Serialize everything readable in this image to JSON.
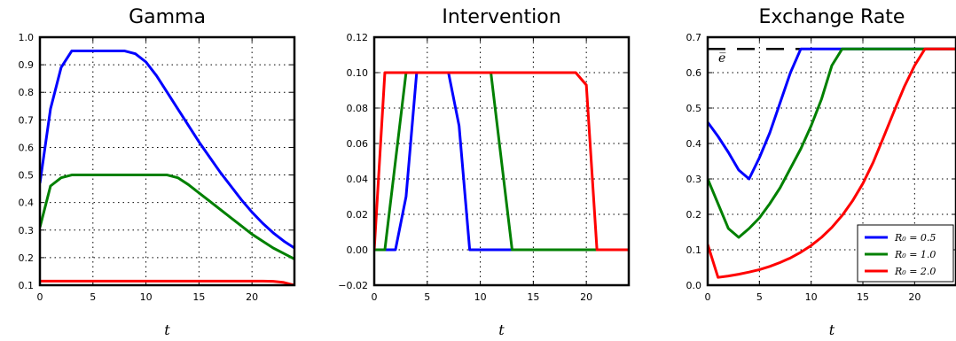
{
  "chart_data": [
    {
      "type": "line",
      "title": "Gamma",
      "xlabel": "t",
      "ylabel": "",
      "xlim": [
        0,
        24
      ],
      "ylim": [
        0.1,
        1.0
      ],
      "xticks": [
        0,
        5,
        10,
        15,
        20
      ],
      "yticks": [
        0.1,
        0.2,
        0.3,
        0.4,
        0.5,
        0.6,
        0.7,
        0.8,
        0.9,
        1.0
      ],
      "ytick_labels": [
        "0.1",
        "0.2",
        "0.3",
        "0.4",
        "0.5",
        "0.6",
        "0.7",
        "0.8",
        "0.9",
        "1.0"
      ],
      "grid": true,
      "series": [
        {
          "color": "#0000ff",
          "x": [
            0,
            1,
            2,
            3,
            4,
            5,
            6,
            7,
            8,
            9,
            10,
            11,
            12,
            13,
            14,
            15,
            16,
            17,
            18,
            19,
            20,
            21,
            22,
            23,
            24
          ],
          "y": [
            0.47,
            0.74,
            0.89,
            0.95,
            0.95,
            0.95,
            0.95,
            0.95,
            0.95,
            0.94,
            0.91,
            0.86,
            0.8,
            0.74,
            0.68,
            0.62,
            0.565,
            0.51,
            0.46,
            0.41,
            0.365,
            0.325,
            0.29,
            0.26,
            0.235
          ]
        },
        {
          "color": "#008000",
          "x": [
            0,
            1,
            2,
            3,
            4,
            5,
            6,
            7,
            8,
            9,
            10,
            11,
            12,
            13,
            14,
            15,
            16,
            17,
            18,
            19,
            20,
            21,
            22,
            23,
            24
          ],
          "y": [
            0.31,
            0.46,
            0.49,
            0.5,
            0.5,
            0.5,
            0.5,
            0.5,
            0.5,
            0.5,
            0.5,
            0.5,
            0.5,
            0.49,
            0.465,
            0.435,
            0.405,
            0.375,
            0.345,
            0.315,
            0.285,
            0.26,
            0.235,
            0.215,
            0.195
          ]
        },
        {
          "color": "#ff0000",
          "x": [
            0,
            5,
            10,
            15,
            20,
            21,
            22,
            23,
            24
          ],
          "y": [
            0.115,
            0.115,
            0.115,
            0.115,
            0.115,
            0.115,
            0.114,
            0.11,
            0.1
          ]
        }
      ]
    },
    {
      "type": "line",
      "title": "Intervention",
      "xlabel": "t",
      "ylabel": "",
      "xlim": [
        0,
        24
      ],
      "ylim": [
        -0.02,
        0.12
      ],
      "xticks": [
        0,
        5,
        10,
        15,
        20
      ],
      "yticks": [
        -0.02,
        0.0,
        0.02,
        0.04,
        0.06,
        0.08,
        0.1,
        0.12
      ],
      "ytick_labels": [
        "−0.02",
        "0.00",
        "0.02",
        "0.04",
        "0.06",
        "0.08",
        "0.10",
        "0.12"
      ],
      "grid": true,
      "series": [
        {
          "color": "#0000ff",
          "x": [
            0,
            2,
            3,
            4,
            5,
            6,
            7,
            8,
            9,
            10,
            24
          ],
          "y": [
            0.0,
            0.0,
            0.03,
            0.1,
            0.1,
            0.1,
            0.1,
            0.07,
            0.0,
            0.0,
            0.0
          ]
        },
        {
          "color": "#008000",
          "x": [
            0,
            1,
            2,
            3,
            11,
            12,
            13,
            24
          ],
          "y": [
            0.0,
            0.0,
            0.05,
            0.1,
            0.1,
            0.05,
            0.0,
            0.0
          ]
        },
        {
          "color": "#ff0000",
          "x": [
            0,
            1,
            19,
            20,
            21,
            24
          ],
          "y": [
            0.0,
            0.1,
            0.1,
            0.093,
            0.0,
            0.0
          ]
        }
      ]
    },
    {
      "type": "line",
      "title": "Exchange Rate",
      "xlabel": "t",
      "ylabel": "",
      "xlim": [
        0,
        24
      ],
      "ylim": [
        0.0,
        0.7
      ],
      "xticks": [
        0,
        5,
        10,
        15,
        20
      ],
      "yticks": [
        0.0,
        0.1,
        0.2,
        0.3,
        0.4,
        0.5,
        0.6,
        0.7
      ],
      "ytick_labels": [
        "0.0",
        "0.1",
        "0.2",
        "0.3",
        "0.4",
        "0.5",
        "0.6",
        "0.7"
      ],
      "grid": true,
      "reference_line": {
        "y": 0.667,
        "color": "#000000",
        "label": "e̅"
      },
      "legend_placement": "lower-right",
      "series": [
        {
          "name": "R₀ = 0.5",
          "color": "#0000ff",
          "x": [
            0,
            1,
            2,
            3,
            4,
            5,
            6,
            7,
            8,
            9,
            24
          ],
          "y": [
            0.46,
            0.42,
            0.375,
            0.325,
            0.3,
            0.36,
            0.43,
            0.515,
            0.6,
            0.667,
            0.667
          ]
        },
        {
          "name": "R₀ = 1.0",
          "color": "#008000",
          "x": [
            0,
            1,
            2,
            3,
            4,
            5,
            6,
            7,
            8,
            9,
            10,
            11,
            12,
            13,
            24
          ],
          "y": [
            0.3,
            0.23,
            0.16,
            0.135,
            0.16,
            0.19,
            0.23,
            0.275,
            0.33,
            0.385,
            0.45,
            0.525,
            0.62,
            0.667,
            0.667
          ]
        },
        {
          "name": "R₀ = 2.0",
          "color": "#ff0000",
          "x": [
            0,
            1,
            2,
            3,
            4,
            5,
            6,
            7,
            8,
            9,
            10,
            11,
            12,
            13,
            14,
            15,
            16,
            17,
            18,
            19,
            20,
            21,
            24
          ],
          "y": [
            0.115,
            0.022,
            0.026,
            0.031,
            0.037,
            0.044,
            0.053,
            0.064,
            0.077,
            0.093,
            0.112,
            0.135,
            0.163,
            0.197,
            0.238,
            0.287,
            0.347,
            0.418,
            0.49,
            0.56,
            0.62,
            0.667,
            0.667
          ]
        }
      ]
    }
  ]
}
